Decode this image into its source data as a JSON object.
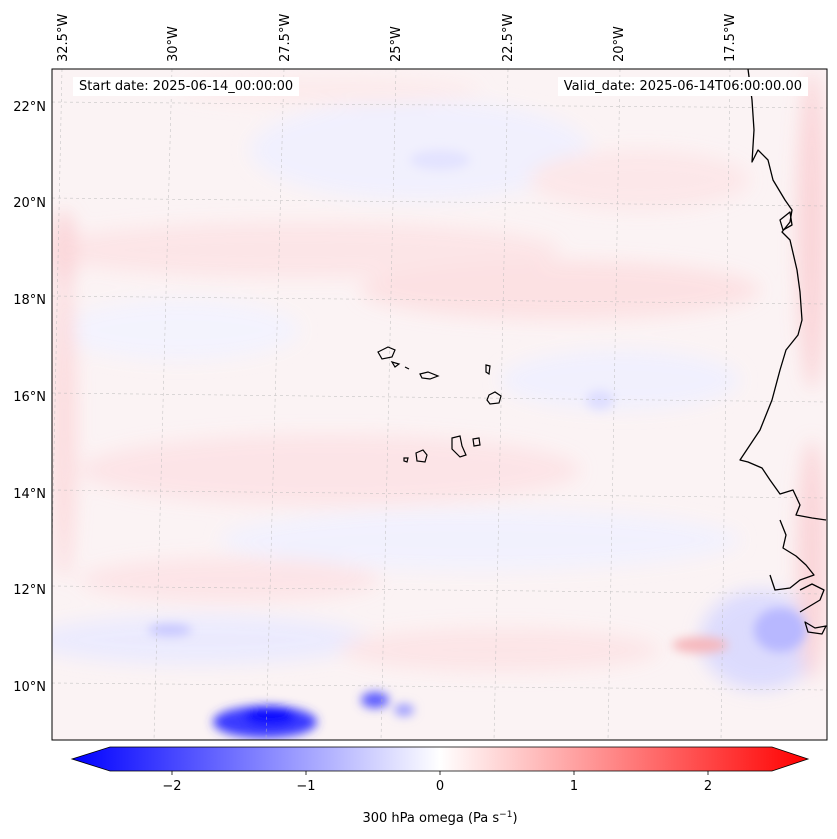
{
  "map": {
    "start_label": "Start date: 2025-06-14_00:00:00",
    "valid_label": "Valid_date: 2025-06-14T06:00:00.00",
    "lon_labels": [
      "32.5°W",
      "30°W",
      "27.5°W",
      "25°W",
      "22.5°W",
      "20°W",
      "17.5°W"
    ],
    "lat_labels": [
      "22°N",
      "20°N",
      "18°N",
      "16°N",
      "14°N",
      "12°N",
      "10°N"
    ],
    "field_variable": "300 hPa omega"
  },
  "colorbar": {
    "ticks": [
      "−2",
      "−1",
      "0",
      "1",
      "2"
    ],
    "label_prefix": "300 hPa omega (Pa s",
    "label_exp": "−1",
    "label_suffix": ")",
    "min_color": "#0000ff",
    "mid_color": "#ffffff",
    "max_color": "#ff0000"
  }
}
